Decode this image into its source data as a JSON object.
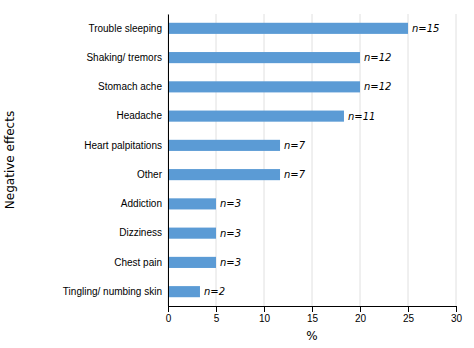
{
  "chart_data": {
    "type": "bar",
    "orientation": "horizontal",
    "xlabel": "%",
    "ylabel": "Negative effects",
    "categories": [
      "Tingling/ numbing skin",
      "Chest pain",
      "Dizziness",
      "Addiction",
      "Other",
      "Heart palpitations",
      "Headache",
      "Stomach ache",
      "Shaking/ tremors",
      "Trouble sleeping"
    ],
    "values": [
      3.33,
      5.0,
      5.0,
      5.0,
      11.67,
      11.67,
      18.33,
      20.0,
      20.0,
      25.0
    ],
    "annotations": [
      "n=2",
      "n=3",
      "n=3",
      "n=3",
      "n=7",
      "n=7",
      "n=11",
      "n=12",
      "n=12",
      "n=15"
    ],
    "color": "#5B9BD5",
    "xlim": [
      0,
      30
    ],
    "xticks": [
      0,
      5,
      10,
      15,
      20,
      25,
      30
    ],
    "grid": true
  }
}
